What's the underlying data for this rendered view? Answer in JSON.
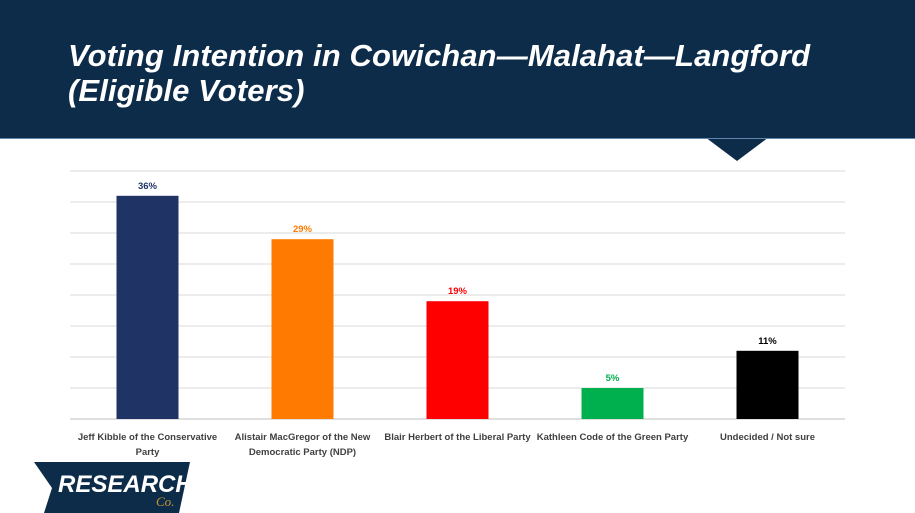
{
  "header": {
    "title_line1": "Voting Intention in Cowichan—Malahat—Langford",
    "title_line2": "(Eligible Voters)"
  },
  "chart_data": {
    "type": "bar",
    "categories": [
      "Jeff Kibble of the Conservative Party",
      "Alistair MacGregor of the New Democratic Party (NDP)",
      "Blair Herbert of the Liberal Party",
      "Kathleen Code of the Green Party",
      "Undecided / Not sure"
    ],
    "values": [
      36,
      29,
      19,
      5,
      11
    ],
    "value_labels": [
      "36%",
      "29%",
      "19%",
      "5%",
      "11%"
    ],
    "colors": [
      "#1f3464",
      "#ff7a00",
      "#ff0000",
      "#00b04f",
      "#000000"
    ],
    "value_label_colors": [
      "#1f3464",
      "#ff7a00",
      "#ff0000",
      "#00b04f",
      "#000000"
    ],
    "ylim": [
      0,
      40
    ],
    "grid": true,
    "title": "",
    "xlabel": "",
    "ylabel": ""
  },
  "logo": {
    "text_main": "RESEARCH",
    "text_sub": "Co."
  }
}
